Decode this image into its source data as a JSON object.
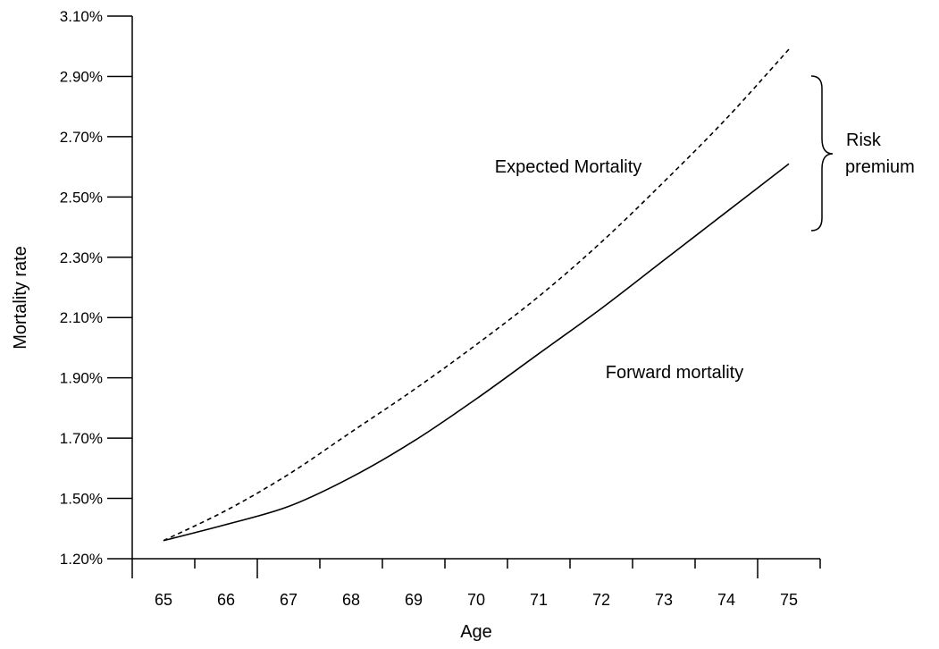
{
  "chart_data": {
    "type": "line",
    "title": "",
    "xlabel": "Age",
    "ylabel": "Mortality rate",
    "x": [
      65,
      66,
      67,
      68,
      69,
      70,
      71,
      72,
      73,
      74,
      75
    ],
    "x_ticks": [
      "65",
      "66",
      "67",
      "68",
      "69",
      "70",
      "71",
      "72",
      "73",
      "74",
      "75"
    ],
    "y_ticks": [
      "1.20%",
      "1.50%",
      "1.70%",
      "1.90%",
      "2.10%",
      "2.30%",
      "2.50%",
      "2.70%",
      "2.90%",
      "3.10%"
    ],
    "ylim": [
      "1.20%",
      "3.10%"
    ],
    "series": [
      {
        "name": "Expected Mortality",
        "style": "dashed",
        "color": "#000000",
        "values": [
          1.29,
          1.44,
          1.58,
          1.72,
          1.86,
          2.01,
          2.17,
          2.35,
          2.55,
          2.76,
          2.99
        ]
      },
      {
        "name": "Forward mortality",
        "style": "solid",
        "color": "#000000",
        "values": [
          1.29,
          1.37,
          1.46,
          1.57,
          1.69,
          1.83,
          1.98,
          2.13,
          2.29,
          2.45,
          2.61
        ]
      }
    ],
    "annotations": {
      "risk_premium": [
        "Risk",
        "premium"
      ]
    },
    "grid": false,
    "legend": "none"
  }
}
